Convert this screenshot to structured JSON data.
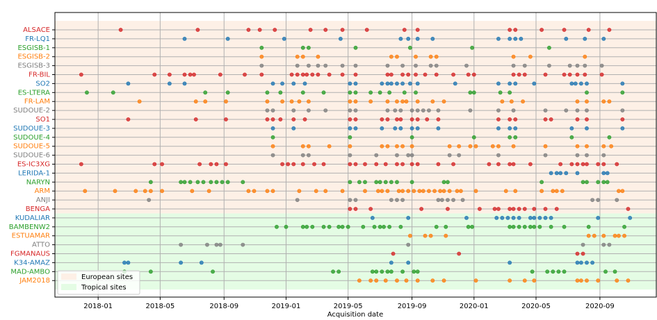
{
  "chart_data": {
    "type": "scatter",
    "xlabel": "Acquisition date",
    "xlim": [
      2017.77,
      2020.97
    ],
    "xticks": [
      {
        "value": 2018.0,
        "label": "2018-01"
      },
      {
        "value": 2018.33,
        "label": "2018-05"
      },
      {
        "value": 2018.67,
        "label": "2018-09"
      },
      {
        "value": 2019.0,
        "label": "2019-01"
      },
      {
        "value": 2019.33,
        "label": "2019-05"
      },
      {
        "value": 2019.67,
        "label": "2019-09"
      },
      {
        "value": 2020.0,
        "label": "2020-01"
      },
      {
        "value": 2020.33,
        "label": "2020-05"
      },
      {
        "value": 2020.67,
        "label": "2020-09"
      }
    ],
    "grid": true,
    "legend": "lower left",
    "regions": [
      {
        "name": "European sites",
        "color": "#fdf0e6",
        "count": 21
      },
      {
        "name": "Tropical sites",
        "color": "#e4fce4",
        "count": 8
      }
    ],
    "series": [
      {
        "name": "ALSACE",
        "color": "#d62728",
        "x": [
          2018.12,
          2018.53,
          2018.8,
          2018.86,
          2018.94,
          2019.13,
          2019.21,
          2019.3,
          2019.43,
          2019.63,
          2019.7,
          2020.19,
          2020.22,
          2020.36,
          2020.48,
          2020.61,
          2020.72
        ]
      },
      {
        "name": "FR-LQ1",
        "color": "#1f77b4",
        "x": [
          2018.46,
          2018.69,
          2018.99,
          2019.29,
          2019.61,
          2019.65,
          2019.7,
          2019.78,
          2020.13,
          2020.19,
          2020.22,
          2020.25,
          2020.49,
          2020.59,
          2020.69
        ]
      },
      {
        "name": "ESGISB-1",
        "color": "#2ca02c",
        "x": [
          2018.87,
          2019.09,
          2019.12,
          2019.37,
          2019.66,
          2019.99,
          2020.4
        ]
      },
      {
        "name": "ESGISB-2",
        "color": "#ff7f0e",
        "x": [
          2018.87,
          2019.06,
          2019.09,
          2019.17,
          2019.56,
          2019.59,
          2019.69,
          2019.77,
          2019.8,
          2020.21,
          2020.3,
          2020.59
        ]
      },
      {
        "name": "ESGISB-3",
        "color": "#7f7f7f",
        "x": [
          2018.87,
          2019.06,
          2019.12,
          2019.17,
          2019.21,
          2019.3,
          2019.37,
          2019.54,
          2019.62,
          2019.69,
          2019.77,
          2019.8,
          2019.96,
          2020.21,
          2020.27,
          2020.4,
          2020.51,
          2020.55,
          2020.59,
          2020.68
        ]
      },
      {
        "name": "FR-BIL",
        "color": "#d62728",
        "x": [
          2017.91,
          2018.3,
          2018.38,
          2018.46,
          2018.49,
          2018.51,
          2018.65,
          2018.78,
          2018.87,
          2019.03,
          2019.06,
          2019.09,
          2019.11,
          2019.14,
          2019.17,
          2019.23,
          2019.3,
          2019.37,
          2019.54,
          2019.56,
          2019.62,
          2019.65,
          2019.69,
          2019.74,
          2019.8,
          2019.89,
          2019.97,
          2020.0,
          2020.21,
          2020.24,
          2020.27,
          2020.38,
          2020.48,
          2020.51,
          2020.55,
          2020.59,
          2020.68
        ]
      },
      {
        "name": "SO2",
        "color": "#1f77b4",
        "x": [
          2018.16,
          2018.38,
          2018.46,
          2018.93,
          2018.98,
          2019.04,
          2019.1,
          2019.34,
          2019.37,
          2019.51,
          2019.54,
          2019.56,
          2019.59,
          2019.62,
          2019.66,
          2019.7,
          2019.9,
          2020.13,
          2020.19,
          2020.22,
          2020.32,
          2020.52,
          2020.54,
          2020.57,
          2020.6,
          2020.79
        ]
      },
      {
        "name": "ES-LTERA",
        "color": "#2ca02c",
        "x": [
          2017.94,
          2018.08,
          2018.57,
          2018.69,
          2018.9,
          2018.97,
          2019.09,
          2019.2,
          2019.34,
          2019.37,
          2019.45,
          2019.5,
          2019.55,
          2019.63,
          2019.69,
          2019.98,
          2020.0,
          2020.14,
          2020.19,
          2020.6,
          2020.79
        ]
      },
      {
        "name": "FR-LAM",
        "color": "#ff7f0e",
        "x": [
          2018.22,
          2018.52,
          2018.57,
          2018.68,
          2018.9,
          2018.98,
          2019.03,
          2019.07,
          2019.12,
          2019.34,
          2019.37,
          2019.45,
          2019.54,
          2019.59,
          2019.62,
          2019.64,
          2019.7,
          2019.78,
          2019.84,
          2020.15,
          2020.2,
          2020.26,
          2020.55,
          2020.6,
          2020.69,
          2020.72
        ]
      },
      {
        "name": "SUDOUE-2",
        "color": "#7f7f7f",
        "x": [
          2018.9,
          2018.93,
          2019.04,
          2019.12,
          2019.21,
          2019.34,
          2019.37,
          2019.54,
          2019.58,
          2019.61,
          2019.67,
          2019.7,
          2019.73,
          2019.76,
          2019.81,
          2019.98,
          2020.13,
          2020.21,
          2020.38,
          2020.49,
          2020.55,
          2020.6,
          2020.79
        ]
      },
      {
        "name": "SO1",
        "color": "#d62728",
        "x": [
          2018.16,
          2018.52,
          2018.68,
          2018.9,
          2018.93,
          2018.97,
          2019.04,
          2019.1,
          2019.34,
          2019.37,
          2019.51,
          2019.54,
          2019.59,
          2019.61,
          2019.67,
          2019.7,
          2019.75,
          2019.81,
          2020.13,
          2020.19,
          2020.22,
          2020.38,
          2020.41,
          2020.55,
          2020.6,
          2020.79
        ]
      },
      {
        "name": "SUDOUE-3",
        "color": "#1f77b4",
        "x": [
          2018.93,
          2019.04,
          2019.34,
          2019.37,
          2019.51,
          2019.58,
          2019.61,
          2019.67,
          2019.7,
          2019.81,
          2020.13,
          2020.19,
          2020.22,
          2020.52,
          2020.6,
          2020.79
        ]
      },
      {
        "name": "SUDOUE-4",
        "color": "#2ca02c",
        "x": [
          2018.93,
          2019.34,
          2019.67,
          2020.0,
          2020.19,
          2020.22,
          2020.52,
          2020.72
        ]
      },
      {
        "name": "SUDOUE-5",
        "color": "#ff7f0e",
        "x": [
          2018.93,
          2019.09,
          2019.12,
          2019.23,
          2019.34,
          2019.51,
          2019.54,
          2019.59,
          2019.62,
          2019.67,
          2019.87,
          2019.92,
          2019.98,
          2020.01,
          2020.1,
          2020.13,
          2020.21,
          2020.38,
          2020.55,
          2020.6,
          2020.69,
          2020.73
        ]
      },
      {
        "name": "SUDOUE-6",
        "color": "#7f7f7f",
        "x": [
          2018.93,
          2019.09,
          2019.12,
          2019.34,
          2019.48,
          2019.59,
          2019.65,
          2019.67,
          2019.87,
          2019.92,
          2020.13,
          2020.38,
          2020.55,
          2020.6,
          2020.69
        ]
      },
      {
        "name": "ES-IC3XG",
        "color": "#d62728",
        "x": [
          2017.91,
          2018.3,
          2018.34,
          2018.54,
          2018.6,
          2018.63,
          2018.68,
          2018.98,
          2019.01,
          2019.04,
          2019.09,
          2019.15,
          2019.2,
          2019.34,
          2019.37,
          2019.42,
          2019.48,
          2019.53,
          2019.59,
          2019.62,
          2019.67,
          2019.7,
          2019.81,
          2019.89,
          2020.08,
          2020.13,
          2020.19,
          2020.21,
          2020.3,
          2020.46,
          2020.52,
          2020.55,
          2020.58,
          2020.6,
          2020.66,
          2020.69,
          2020.76
        ]
      },
      {
        "name": "LERIDA-1",
        "color": "#1f77b4",
        "x": [
          2020.41,
          2020.44,
          2020.46,
          2020.49,
          2020.55,
          2020.69,
          2020.71
        ]
      },
      {
        "name": "NARYN",
        "color": "#2ca02c",
        "x": [
          2018.28,
          2018.44,
          2018.46,
          2018.49,
          2018.53,
          2018.56,
          2018.6,
          2018.63,
          2018.66,
          2018.69,
          2018.77,
          2019.34,
          2019.39,
          2019.42,
          2019.48,
          2019.5,
          2019.53,
          2019.56,
          2019.59,
          2019.67,
          2019.84,
          2019.86,
          2020.36,
          2020.58,
          2020.6,
          2020.66,
          2020.69,
          2020.71
        ]
      },
      {
        "name": "ARM",
        "color": "#ff7f0e",
        "x": [
          2017.93,
          2018.09,
          2018.2,
          2018.25,
          2018.28,
          2018.34,
          2018.5,
          2018.59,
          2018.8,
          2018.83,
          2018.9,
          2018.93,
          2019.07,
          2019.16,
          2019.21,
          2019.3,
          2019.42,
          2019.49,
          2019.51,
          2019.54,
          2019.6,
          2019.62,
          2019.65,
          2019.68,
          2019.71,
          2019.73,
          2019.76,
          2019.79,
          2019.82,
          2019.84,
          2019.87,
          2019.91,
          2019.93,
          2020.01,
          2020.17,
          2020.22,
          2020.36,
          2020.42,
          2020.44,
          2020.47,
          2020.77,
          2020.79
        ]
      },
      {
        "name": "ANJI",
        "color": "#7f7f7f",
        "x": [
          2018.27,
          2019.06,
          2019.34,
          2019.37,
          2019.56,
          2019.59,
          2019.62,
          2019.81,
          2019.83,
          2019.86,
          2019.89,
          2019.94,
          2020.63,
          2020.66,
          2020.76
        ]
      },
      {
        "name": "BENGA",
        "color": "#d62728",
        "x": [
          2019.34,
          2019.37,
          2019.45,
          2019.72,
          2019.86,
          2020.03,
          2020.11,
          2020.13,
          2020.19,
          2020.21,
          2020.24,
          2020.27,
          2020.32,
          2020.38,
          2020.44,
          2020.82
        ]
      },
      {
        "name": "KUDALIAR",
        "color": "#1f77b4",
        "x": [
          2019.46,
          2019.65,
          2019.96,
          2020.12,
          2020.15,
          2020.18,
          2020.21,
          2020.24,
          2020.3,
          2020.32,
          2020.35,
          2020.38,
          2020.41,
          2020.66,
          2020.83
        ]
      },
      {
        "name": "BAMBENW2",
        "color": "#2ca02c",
        "x": [
          2018.95,
          2019.0,
          2019.09,
          2019.11,
          2019.14,
          2019.2,
          2019.23,
          2019.28,
          2019.3,
          2019.33,
          2019.41,
          2019.47,
          2019.5,
          2019.52,
          2019.55,
          2019.61,
          2019.8,
          2019.85,
          2019.97,
          2019.99,
          2020.19,
          2020.21,
          2020.24,
          2020.27,
          2020.3,
          2020.32,
          2020.35,
          2020.41,
          2020.48,
          2020.61,
          2020.8
        ]
      },
      {
        "name": "ESTUAMAR",
        "color": "#ff7f0e",
        "x": [
          2019.66,
          2019.74,
          2019.77,
          2019.85,
          2020.61,
          2020.64,
          2020.69,
          2020.75,
          2020.77,
          2020.8
        ]
      },
      {
        "name": "ATTO",
        "color": "#7f7f7f",
        "x": [
          2018.44,
          2018.58,
          2018.63,
          2018.65,
          2018.77,
          2019.65,
          2020.58,
          2020.69,
          2020.72
        ]
      },
      {
        "name": "FGMANAUS",
        "color": "#d62728",
        "x": [
          2019.57,
          2019.92,
          2020.55,
          2020.58
        ]
      },
      {
        "name": "K34-AMAZ",
        "color": "#1f77b4",
        "x": [
          2018.14,
          2018.16,
          2018.44,
          2018.55,
          2019.56,
          2019.65,
          2020.19,
          2020.55,
          2020.57,
          2020.6,
          2020.63
        ]
      },
      {
        "name": "MAD-AMBO",
        "color": "#2ca02c",
        "x": [
          2018.14,
          2018.28,
          2018.61,
          2019.25,
          2019.28,
          2019.46,
          2019.48,
          2019.51,
          2019.54,
          2019.56,
          2019.62,
          2019.68,
          2019.7,
          2020.31,
          2020.39,
          2020.42,
          2020.45,
          2020.48,
          2020.7,
          2020.75
        ]
      },
      {
        "name": "JAM2018",
        "color": "#ff7f0e",
        "x": [
          2019.39,
          2019.45,
          2019.48,
          2019.53,
          2019.59,
          2019.64,
          2019.7,
          2019.78,
          2019.84,
          2020.01,
          2020.19,
          2020.27,
          2020.32,
          2020.55,
          2020.57,
          2020.6,
          2020.66,
          2020.76,
          2020.82
        ]
      }
    ]
  }
}
